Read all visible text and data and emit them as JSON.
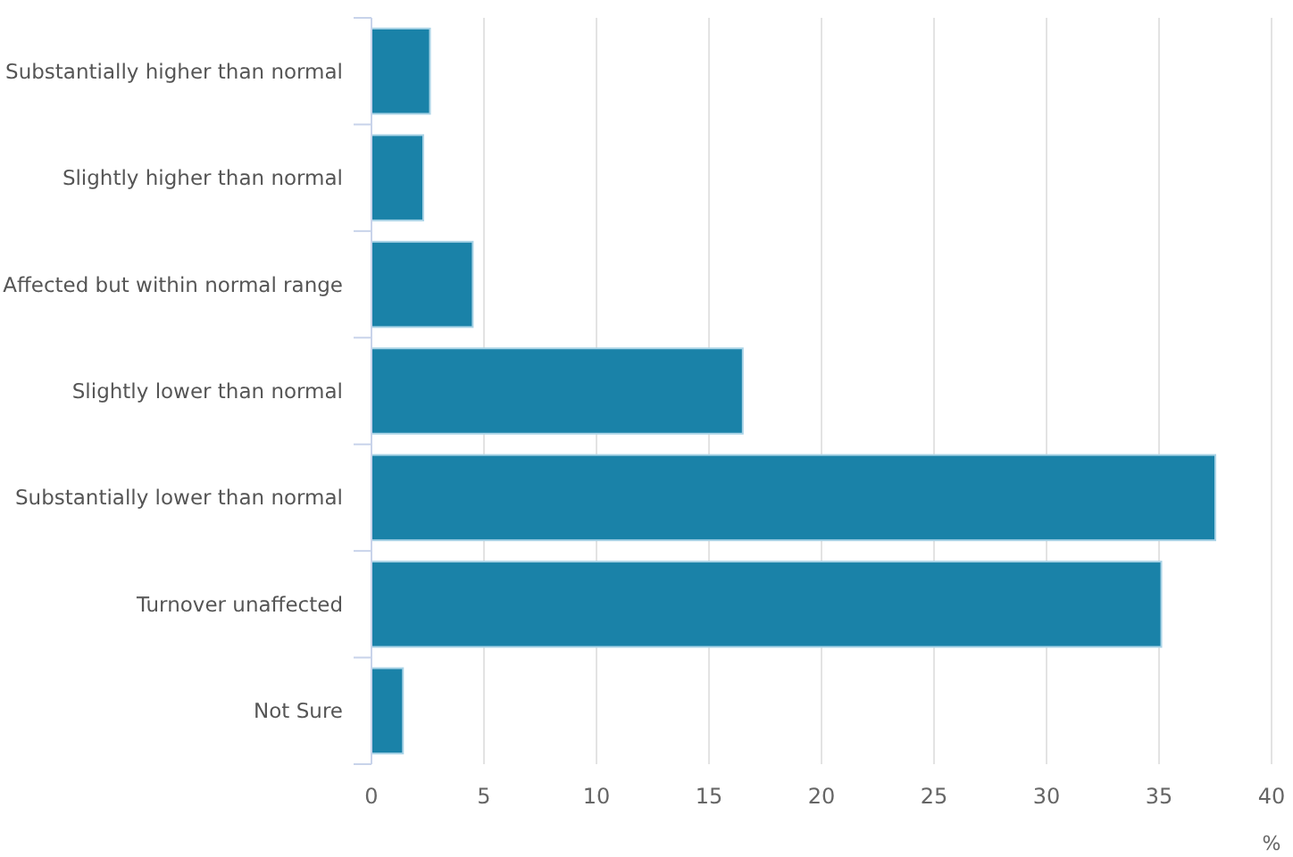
{
  "chart_data": {
    "type": "bar",
    "orientation": "horizontal",
    "categories": [
      "Substantially higher than normal",
      "Slightly higher than normal",
      "Affected but within normal range",
      "Slightly lower than normal",
      "Substantially lower than normal",
      "Turnover unaffected",
      "Not Sure"
    ],
    "values": [
      2.6,
      2.3,
      4.5,
      16.5,
      37.5,
      35.1,
      1.4
    ],
    "color": "#1a82a8",
    "xlabel": "%",
    "xlim": [
      0,
      40
    ],
    "xticks": [
      0,
      5,
      10,
      15,
      20,
      25,
      30,
      35,
      40
    ],
    "grid": "x"
  }
}
